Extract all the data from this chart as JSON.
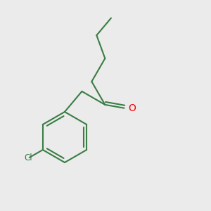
{
  "background_color": "#ebebeb",
  "bond_color": "#3a7d44",
  "o_color": "#ff0000",
  "cl_color": "#3a7d44",
  "line_width": 1.5,
  "fig_size": [
    3.0,
    3.0
  ],
  "dpi": 100,
  "o_label": "O",
  "cl_label": "Cl"
}
